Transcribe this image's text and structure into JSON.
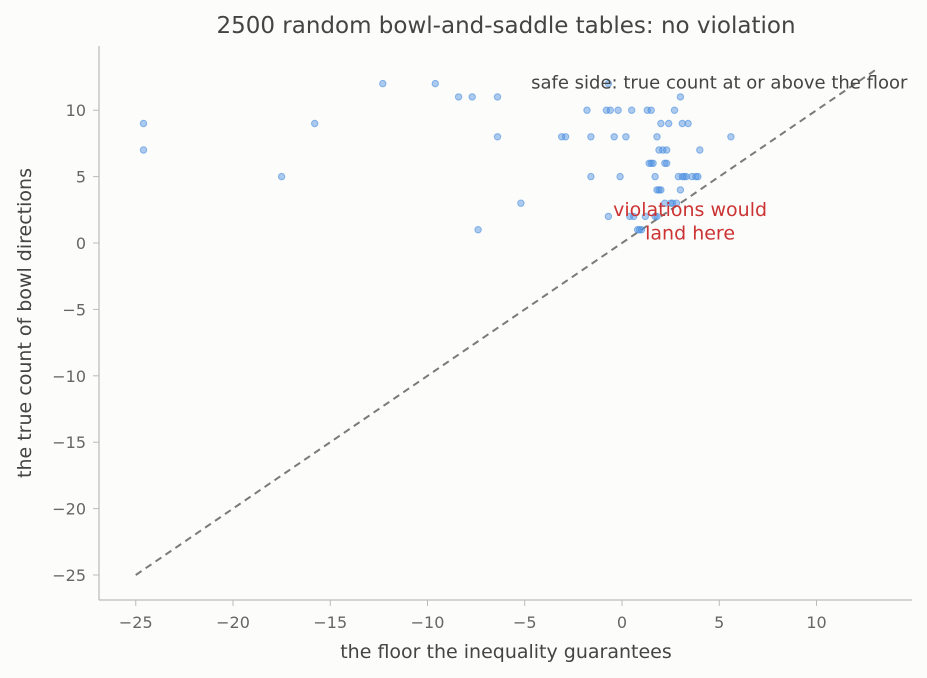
{
  "chart_data": {
    "type": "scatter",
    "title": "2500 random bowl-and-saddle tables: no violation",
    "xlabel": "the floor the inequality guarantees",
    "ylabel": "the true count of bowl directions",
    "xlim": [
      -27,
      15
    ],
    "ylim": [
      -27,
      15
    ],
    "xticks": [
      -25,
      -20,
      -15,
      -10,
      -5,
      0,
      5,
      10
    ],
    "yticks": [
      -25,
      -20,
      -15,
      -10,
      -5,
      0,
      5,
      10
    ],
    "xtick_labels": [
      "−25",
      "−20",
      "−15",
      "−10",
      "−5",
      "0",
      "5",
      "10"
    ],
    "ytick_labels": [
      "−25",
      "−20",
      "−15",
      "−10",
      "−5",
      "0",
      "5",
      "10"
    ],
    "grid": false,
    "reference_line": {
      "style": "dashed",
      "color": "#7a7a7a",
      "from": [
        -25,
        -25
      ],
      "to": [
        13,
        13
      ]
    },
    "point_color": "#4a8ee0",
    "annotation_color": "#cc3333",
    "annotations": [
      {
        "text": "safe side: true count at or above the floor",
        "x": 5,
        "y": 12
      },
      {
        "text": "violations would",
        "x": 3.5,
        "y": 2.5
      },
      {
        "text": "land here",
        "x": 3.5,
        "y": 0.7
      }
    ],
    "points": [
      [
        -24.6,
        9
      ],
      [
        -24.6,
        7
      ],
      [
        -17.5,
        5
      ],
      [
        -15.8,
        9
      ],
      [
        -12.3,
        12
      ],
      [
        -9.6,
        12
      ],
      [
        -8.4,
        11
      ],
      [
        -7.7,
        11
      ],
      [
        -7.4,
        1
      ],
      [
        -6.4,
        11
      ],
      [
        -6.4,
        8
      ],
      [
        -5.2,
        3
      ],
      [
        -3.1,
        8
      ],
      [
        -2.9,
        8
      ],
      [
        -1.8,
        10
      ],
      [
        -1.6,
        8
      ],
      [
        -1.6,
        5
      ],
      [
        -0.8,
        10
      ],
      [
        -0.6,
        10
      ],
      [
        -0.7,
        12
      ],
      [
        -0.4,
        8
      ],
      [
        -0.2,
        10
      ],
      [
        -0.1,
        5
      ],
      [
        0.2,
        8
      ],
      [
        0.5,
        10
      ],
      [
        -0.7,
        2
      ],
      [
        0.4,
        2
      ],
      [
        0.6,
        2
      ],
      [
        0.8,
        1
      ],
      [
        0.9,
        1
      ],
      [
        1.0,
        1
      ],
      [
        1.2,
        2
      ],
      [
        1.3,
        10
      ],
      [
        1.5,
        10
      ],
      [
        1.4,
        6
      ],
      [
        1.5,
        6
      ],
      [
        1.6,
        6
      ],
      [
        1.7,
        5
      ],
      [
        1.8,
        8
      ],
      [
        1.8,
        4
      ],
      [
        1.9,
        4
      ],
      [
        2.0,
        4
      ],
      [
        1.9,
        7
      ],
      [
        2.0,
        9
      ],
      [
        2.1,
        7
      ],
      [
        2.2,
        6
      ],
      [
        2.3,
        6
      ],
      [
        2.3,
        7
      ],
      [
        2.4,
        9
      ],
      [
        2.5,
        3
      ],
      [
        2.6,
        3
      ],
      [
        2.7,
        10
      ],
      [
        2.8,
        3
      ],
      [
        2.9,
        5
      ],
      [
        3.0,
        11
      ],
      [
        3.0,
        4
      ],
      [
        3.1,
        9
      ],
      [
        3.1,
        5
      ],
      [
        3.2,
        5
      ],
      [
        3.3,
        5
      ],
      [
        3.4,
        9
      ],
      [
        3.6,
        5
      ],
      [
        3.8,
        5
      ],
      [
        3.9,
        5
      ],
      [
        4.0,
        7
      ],
      [
        5.6,
        8
      ],
      [
        1.7,
        2
      ],
      [
        1.8,
        2
      ],
      [
        2.2,
        3
      ]
    ]
  }
}
